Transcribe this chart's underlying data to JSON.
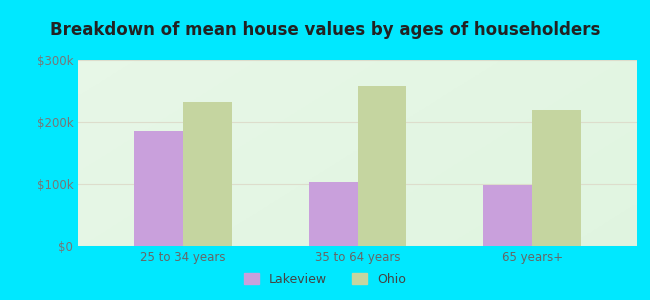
{
  "title": "Breakdown of mean house values by ages of householders",
  "categories": [
    "25 to 34 years",
    "35 to 64 years",
    "65 years+"
  ],
  "lakeview_values": [
    185000,
    103000,
    98000
  ],
  "ohio_values": [
    232000,
    258000,
    220000
  ],
  "ylim": [
    0,
    300000
  ],
  "yticks": [
    0,
    100000,
    200000,
    300000
  ],
  "ytick_labels": [
    "$0",
    "$100k",
    "$200k",
    "$300k"
  ],
  "lakeview_color": "#c9a0dc",
  "ohio_color": "#c5d5a0",
  "background_outer": "#00e8ff",
  "title_fontsize": 12,
  "legend_labels": [
    "Lakeview",
    "Ohio"
  ],
  "bar_width": 0.28
}
